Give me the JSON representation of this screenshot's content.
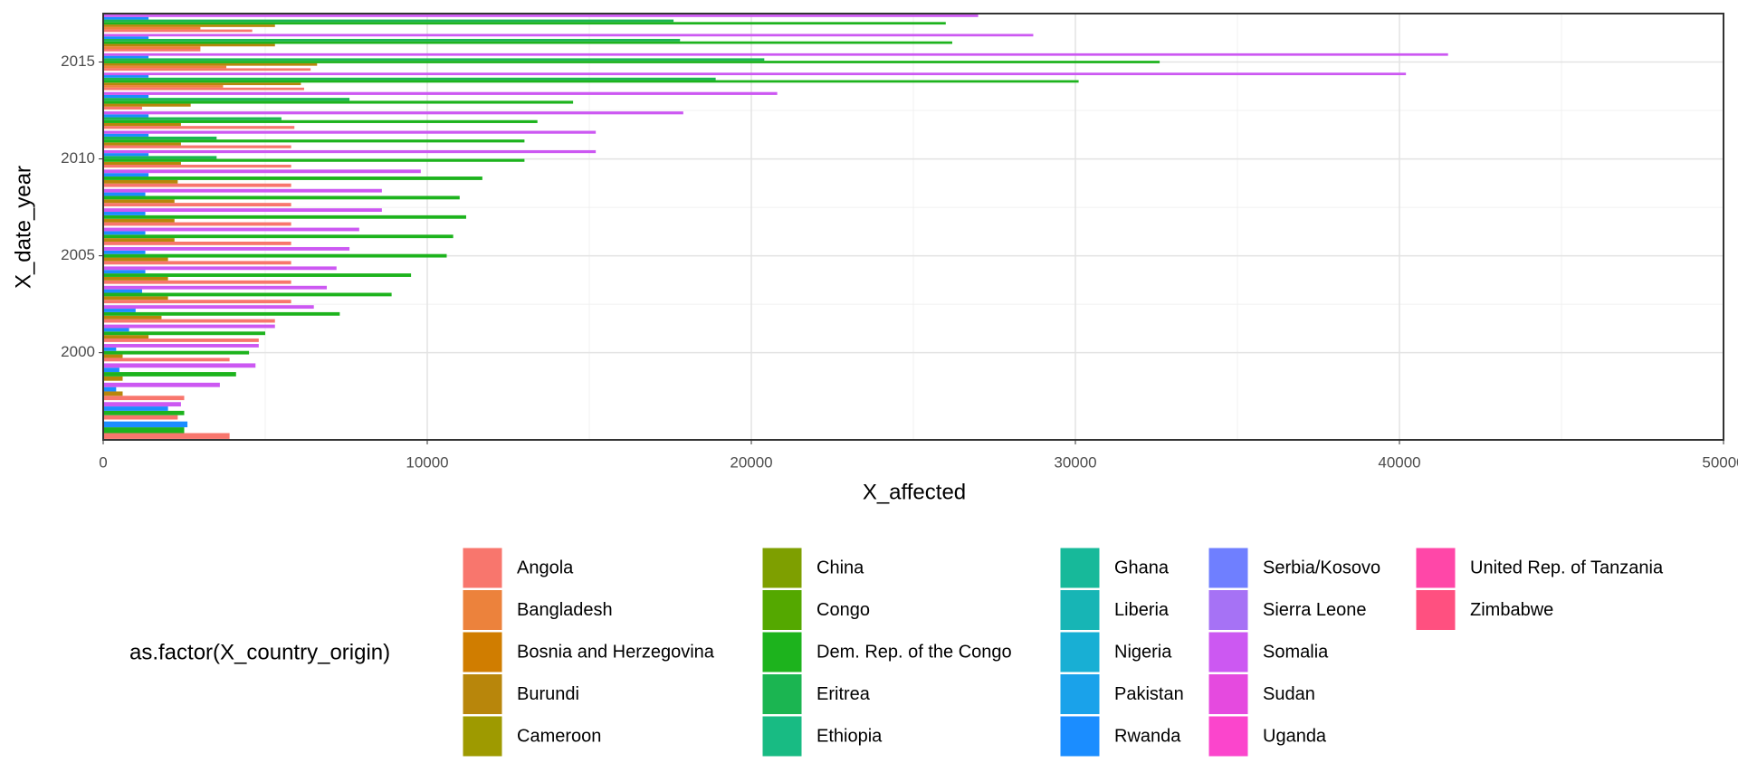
{
  "chart_data": {
    "type": "bar",
    "orientation": "horizontal",
    "x_label": "X_affected",
    "y_label": "X_date_year",
    "legend_title": "as.factor(X_country_origin)",
    "categories": [
      1996,
      1997,
      1998,
      1999,
      2000,
      2001,
      2002,
      2003,
      2004,
      2005,
      2006,
      2007,
      2008,
      2009,
      2010,
      2011,
      2012,
      2013,
      2014,
      2015,
      2016,
      2017
    ],
    "xlim": [
      0,
      50000
    ],
    "xticks": [
      0,
      10000,
      20000,
      30000,
      40000,
      50000
    ],
    "ylim": [
      1995.5,
      2017.5
    ],
    "yticks": [
      2000,
      2005,
      2010,
      2015
    ],
    "grid": true,
    "legend_position": "bottom",
    "series": [
      {
        "name": "Angola",
        "color": "#F8766D",
        "values": [
          3900,
          2300,
          2500,
          null,
          3900,
          4800,
          5300,
          5800,
          5800,
          5800,
          5800,
          5800,
          5800,
          5800,
          5800,
          5800,
          5900,
          1200,
          6200,
          6400,
          3000,
          4600
        ]
      },
      {
        "name": "Bangladesh",
        "color": "#EC823C",
        "values": [
          null,
          null,
          null,
          null,
          null,
          null,
          null,
          null,
          null,
          null,
          null,
          null,
          null,
          null,
          null,
          null,
          null,
          null,
          3700,
          3800,
          3000,
          3000
        ]
      },
      {
        "name": "Bosnia and Herzegovina",
        "color": "#D07D00",
        "values": [
          null,
          null,
          null,
          null,
          null,
          null,
          null,
          null,
          null,
          null,
          null,
          null,
          null,
          null,
          null,
          null,
          null,
          null,
          null,
          null,
          null,
          null
        ]
      },
      {
        "name": "Burundi",
        "color": "#B8860B",
        "values": [
          null,
          null,
          600,
          600,
          600,
          1400,
          1800,
          2000,
          2000,
          2000,
          2200,
          2200,
          2200,
          2300,
          2400,
          2400,
          2400,
          2700,
          6100,
          6600,
          5300,
          5300
        ]
      },
      {
        "name": "Cameroon",
        "color": "#9E9A00",
        "values": [
          null,
          null,
          null,
          null,
          null,
          null,
          null,
          null,
          null,
          null,
          null,
          null,
          null,
          null,
          null,
          null,
          null,
          null,
          null,
          null,
          null,
          null
        ]
      },
      {
        "name": "China",
        "color": "#7E9F00",
        "values": [
          null,
          null,
          null,
          null,
          null,
          null,
          null,
          null,
          null,
          null,
          null,
          null,
          null,
          null,
          null,
          null,
          null,
          null,
          null,
          null,
          null,
          null
        ]
      },
      {
        "name": "Congo",
        "color": "#54A800",
        "values": [
          null,
          null,
          null,
          null,
          null,
          null,
          null,
          null,
          null,
          null,
          null,
          null,
          null,
          null,
          null,
          null,
          null,
          null,
          null,
          null,
          null,
          null
        ]
      },
      {
        "name": "Dem. Rep. of the Congo",
        "color": "#1DB31D",
        "values": [
          2500,
          2500,
          null,
          4100,
          4500,
          5000,
          7300,
          8900,
          9500,
          10600,
          10800,
          11200,
          11000,
          11700,
          13000,
          13000,
          13400,
          14500,
          30100,
          32600,
          26200,
          26000
        ]
      },
      {
        "name": "Eritrea",
        "color": "#1BB551",
        "values": [
          null,
          null,
          null,
          null,
          null,
          null,
          null,
          null,
          null,
          null,
          null,
          null,
          null,
          null,
          3500,
          3500,
          5500,
          7600,
          18900,
          20400,
          17800,
          17600
        ]
      },
      {
        "name": "Ethiopia",
        "color": "#18BB83",
        "values": [
          null,
          null,
          null,
          null,
          null,
          null,
          null,
          null,
          null,
          null,
          null,
          null,
          null,
          null,
          null,
          null,
          null,
          null,
          null,
          null,
          null,
          null
        ]
      },
      {
        "name": "Ghana",
        "color": "#17B99A",
        "values": [
          null,
          null,
          null,
          null,
          null,
          null,
          null,
          null,
          null,
          null,
          null,
          null,
          null,
          null,
          null,
          null,
          null,
          null,
          null,
          null,
          null,
          null
        ]
      },
      {
        "name": "Liberia",
        "color": "#17B5B5",
        "values": [
          null,
          null,
          null,
          null,
          null,
          null,
          null,
          null,
          null,
          null,
          null,
          null,
          null,
          null,
          null,
          null,
          null,
          null,
          null,
          null,
          null,
          null
        ]
      },
      {
        "name": "Nigeria",
        "color": "#18AFD4",
        "values": [
          null,
          null,
          null,
          null,
          null,
          null,
          null,
          null,
          null,
          null,
          null,
          null,
          null,
          null,
          null,
          null,
          null,
          null,
          null,
          null,
          null,
          null
        ]
      },
      {
        "name": "Pakistan",
        "color": "#1AA2EA",
        "values": [
          null,
          null,
          null,
          null,
          null,
          null,
          null,
          null,
          null,
          null,
          null,
          null,
          null,
          null,
          null,
          null,
          null,
          null,
          null,
          null,
          null,
          null
        ]
      },
      {
        "name": "Rwanda",
        "color": "#1B8DFF",
        "values": [
          2600,
          2000,
          400,
          500,
          400,
          800,
          1000,
          1200,
          1300,
          1300,
          1300,
          1300,
          1300,
          1400,
          1400,
          1400,
          1400,
          1400,
          1400,
          1400,
          1400,
          1400
        ]
      },
      {
        "name": "Serbia/Kosovo",
        "color": "#6F7FFF",
        "values": [
          null,
          null,
          null,
          null,
          null,
          null,
          null,
          null,
          null,
          null,
          null,
          null,
          null,
          null,
          null,
          null,
          null,
          null,
          null,
          null,
          null,
          null
        ]
      },
      {
        "name": "Sierra Leone",
        "color": "#A672F5",
        "values": [
          null,
          null,
          null,
          null,
          null,
          null,
          null,
          null,
          null,
          null,
          null,
          null,
          null,
          null,
          null,
          null,
          null,
          null,
          null,
          null,
          null,
          null
        ]
      },
      {
        "name": "Somalia",
        "color": "#CC58F2",
        "values": [
          null,
          2400,
          3600,
          4700,
          4800,
          5300,
          6500,
          6900,
          7200,
          7600,
          7900,
          8600,
          8600,
          9800,
          15200,
          15200,
          17900,
          20800,
          40200,
          41500,
          28700,
          27000
        ]
      },
      {
        "name": "Sudan",
        "color": "#E54ADF",
        "values": [
          null,
          null,
          null,
          null,
          null,
          null,
          null,
          null,
          null,
          null,
          null,
          null,
          null,
          null,
          null,
          null,
          null,
          null,
          null,
          null,
          null,
          null
        ]
      },
      {
        "name": "Uganda",
        "color": "#FB45CC",
        "values": [
          null,
          null,
          null,
          null,
          null,
          null,
          null,
          null,
          null,
          null,
          null,
          null,
          null,
          null,
          null,
          null,
          null,
          null,
          null,
          null,
          null,
          null
        ]
      },
      {
        "name": "United Rep. of Tanzania",
        "color": "#FF47A8",
        "values": [
          null,
          null,
          null,
          null,
          null,
          null,
          null,
          null,
          null,
          null,
          null,
          null,
          null,
          null,
          null,
          null,
          null,
          null,
          null,
          null,
          null,
          null
        ]
      },
      {
        "name": "Zimbabwe",
        "color": "#FF5080",
        "values": [
          null,
          null,
          null,
          null,
          null,
          null,
          null,
          null,
          null,
          null,
          null,
          null,
          null,
          null,
          null,
          null,
          null,
          null,
          null,
          null,
          null,
          null
        ]
      }
    ]
  }
}
